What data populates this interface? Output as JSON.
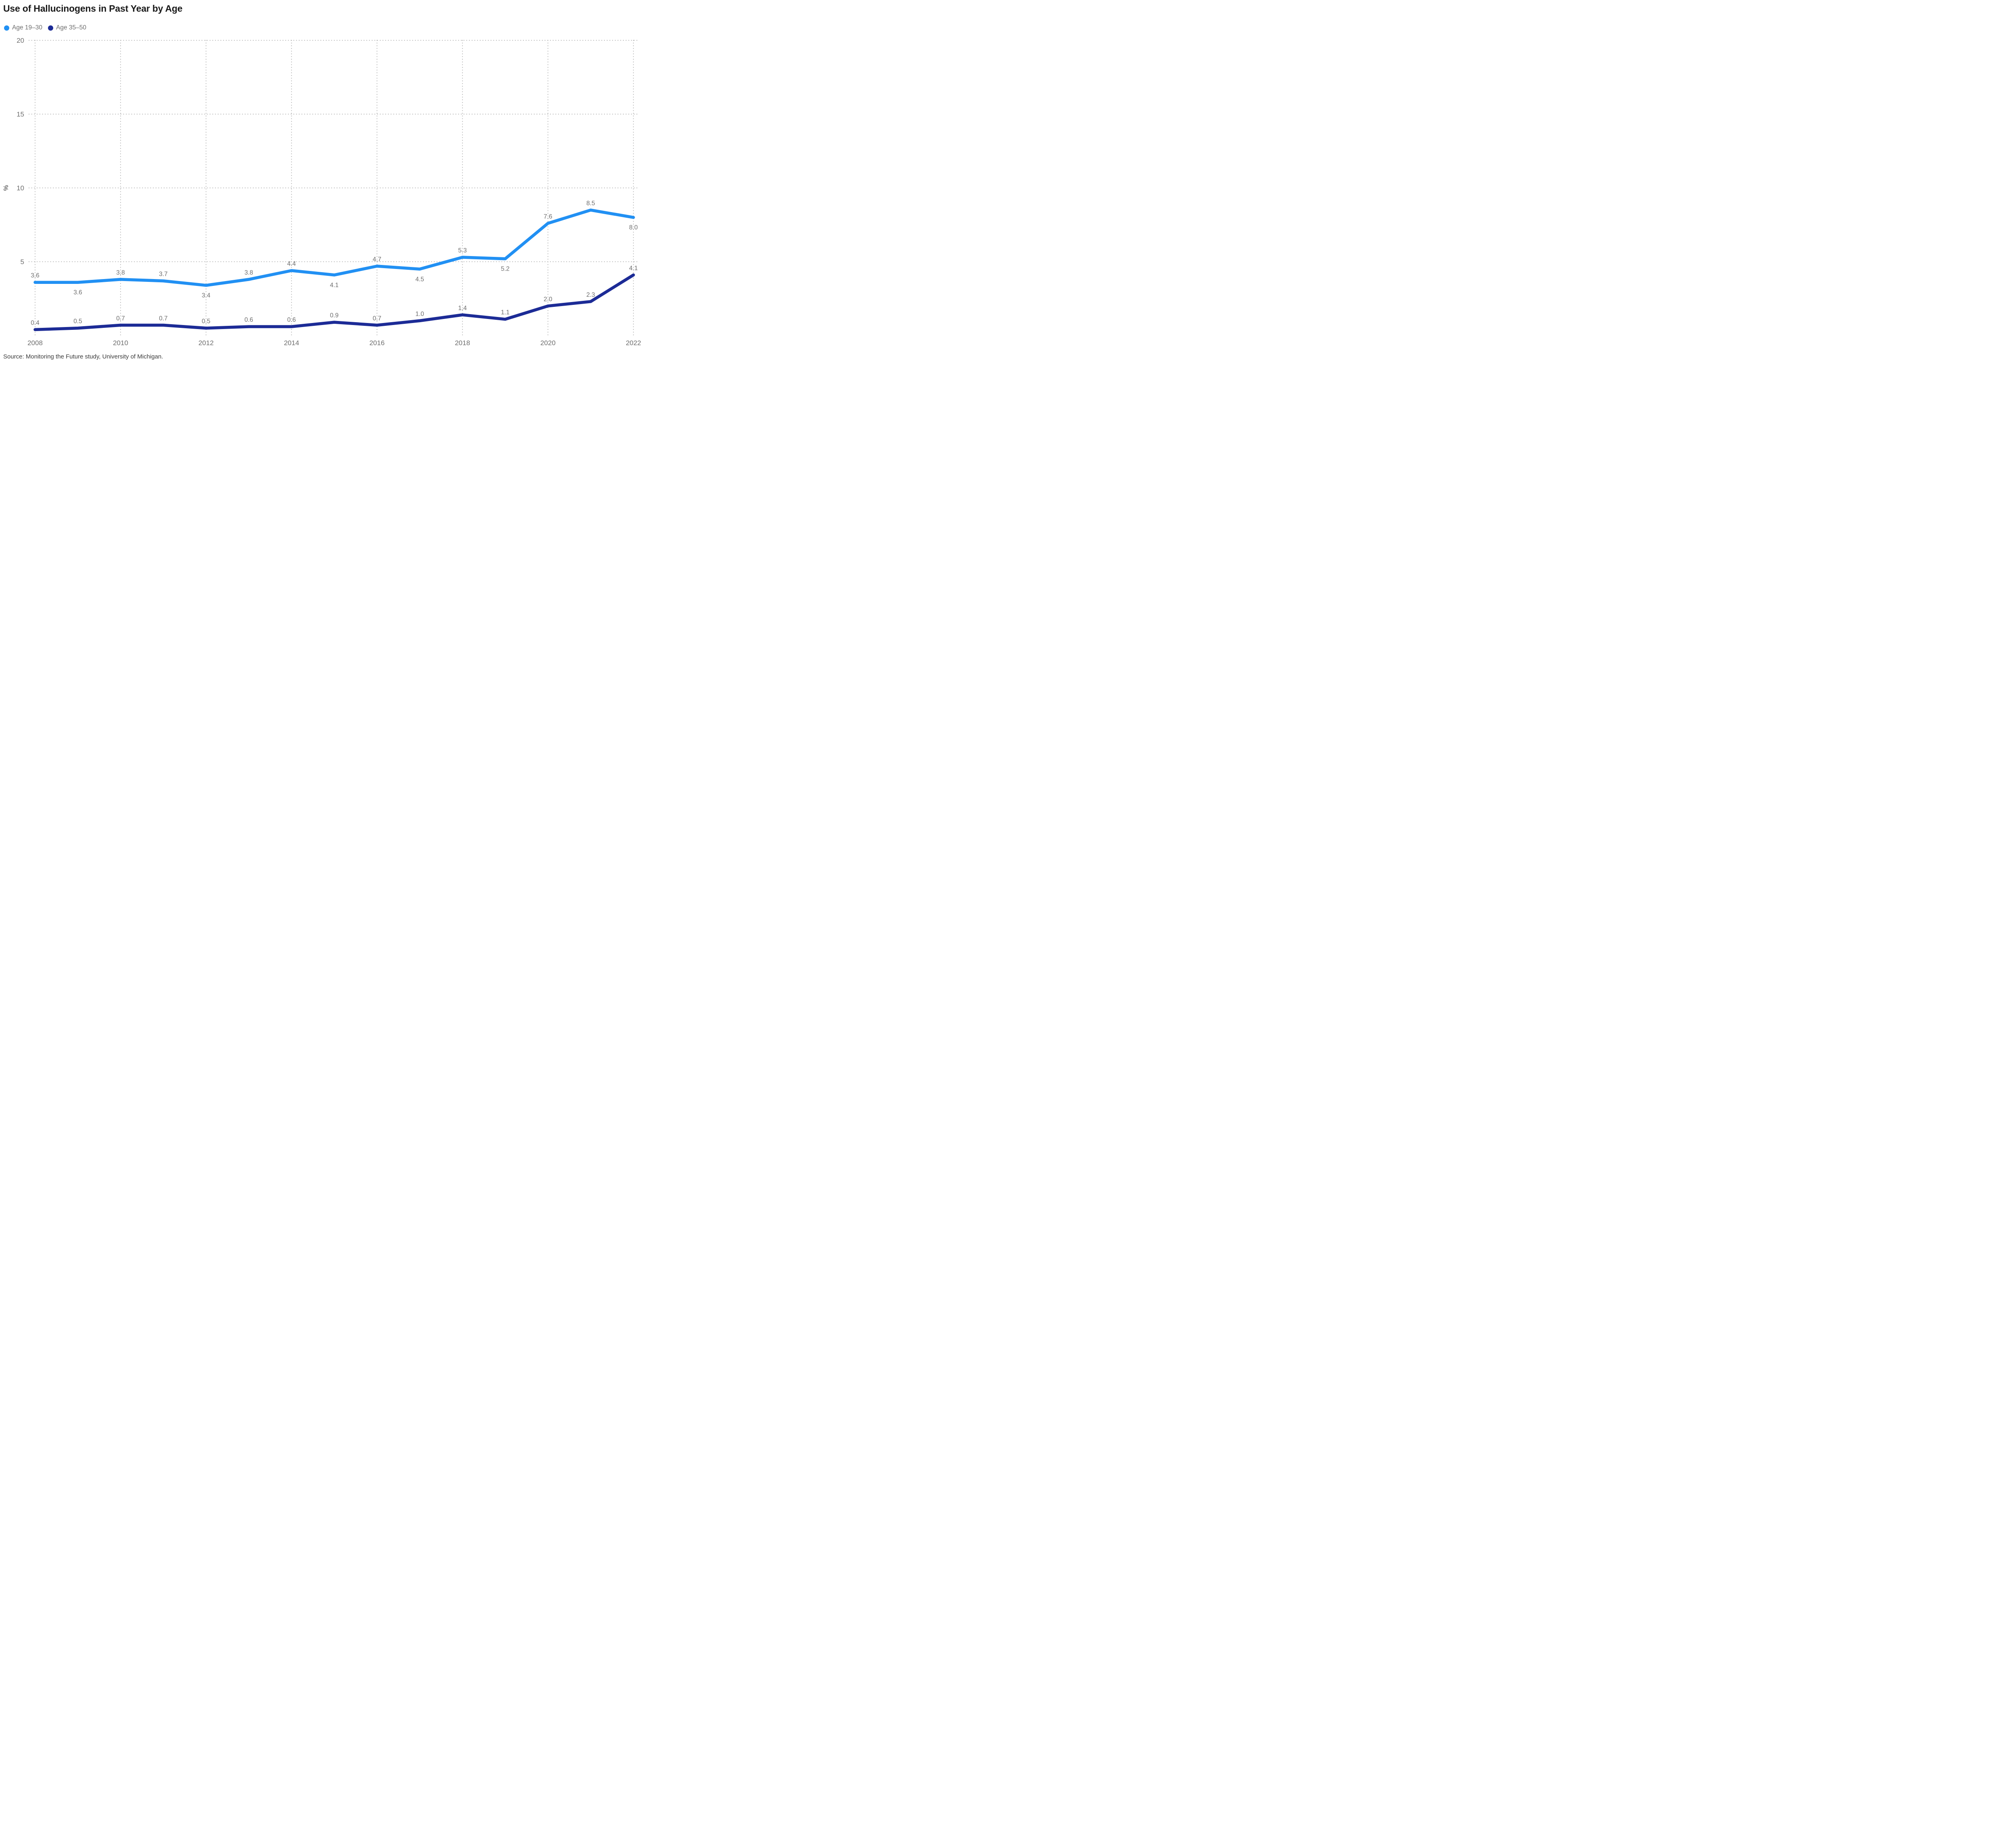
{
  "title": "Use of Hallucinogens in Past Year by Age",
  "source": "Source: Monitoring the Future study, University of Michigan.",
  "legend": [
    {
      "label": "Age 19–30",
      "color": "#2190F3"
    },
    {
      "label": "Age 35–50",
      "color": "#1C2B96"
    }
  ],
  "chart_data": {
    "type": "line",
    "title": "Use of Hallucinogens in Past Year by Age",
    "x": [
      2008,
      2009,
      2010,
      2011,
      2012,
      2013,
      2014,
      2015,
      2016,
      2017,
      2018,
      2019,
      2020,
      2021,
      2022
    ],
    "x_tick_labels": [
      "2008",
      "2010",
      "2012",
      "2014",
      "2016",
      "2018",
      "2020",
      "2022"
    ],
    "ylabel": "%",
    "y_ticks": [
      5,
      10,
      15,
      20
    ],
    "ylim": [
      0,
      20
    ],
    "grid": "dotted horizontal at y ticks; dotted vertical at even years",
    "legend_position": "top-left",
    "gridline_color": "#b9b9b9",
    "tick_label_color": "#6e6e6e",
    "data_label_color": "#6e6e6e",
    "axis_unit_color": "#2b2b2b",
    "series": [
      {
        "name": "Age 19–30",
        "color": "#2190F3",
        "values": [
          3.6,
          3.6,
          3.8,
          3.7,
          3.4,
          3.8,
          4.4,
          4.1,
          4.7,
          4.5,
          5.3,
          5.2,
          7.6,
          8.5,
          8.0
        ],
        "label_positions": [
          "above",
          "below",
          "above",
          "above",
          "below",
          "above",
          "above",
          "below",
          "above",
          "below",
          "above",
          "below",
          "above",
          "above",
          "below"
        ]
      },
      {
        "name": "Age 35–50",
        "color": "#1C2B96",
        "values": [
          0.4,
          0.5,
          0.7,
          0.7,
          0.5,
          0.6,
          0.6,
          0.9,
          0.7,
          1.0,
          1.4,
          1.1,
          2.0,
          2.3,
          4.1
        ],
        "label_positions": [
          "above",
          "above",
          "above",
          "above",
          "above",
          "above",
          "above",
          "above",
          "above",
          "above",
          "above",
          "above",
          "above",
          "above",
          "above"
        ]
      }
    ]
  }
}
